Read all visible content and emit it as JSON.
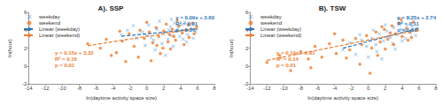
{
  "chart_data": [
    {
      "type": "scatter",
      "title": "A). SSP",
      "x_label": "ln(daytime activity space size)",
      "y_label": "ln(hour)",
      "xlim": [
        -14,
        8
      ],
      "xticks": [
        -14,
        -12,
        -10,
        -8,
        -6,
        -4,
        -2,
        0,
        2,
        4,
        6,
        8
      ],
      "ylim": [
        -2,
        6
      ],
      "yticks": [
        -2,
        0,
        2,
        4,
        6
      ],
      "grid": false,
      "legend": "top-left",
      "series": [
        {
          "name": "weekday",
          "type": "scatter",
          "marker": "x",
          "color": "#5b9bd5",
          "x": [
            0.5,
            1.2,
            2.0,
            2.8,
            3.5,
            4.1,
            4.8,
            5.2,
            5.8,
            1.8,
            2.5,
            3.1,
            3.9,
            4.5,
            0.2,
            -0.5,
            -1.2,
            -2.3,
            -3.0,
            1.0,
            2.2,
            3.3,
            4.7,
            5.5,
            0.8,
            -0.2,
            1.5,
            2.9,
            3.7,
            4.3,
            5.0,
            -1.6,
            0.0,
            2.6,
            3.0
          ],
          "values": [
            3.2,
            4.1,
            3.6,
            4.4,
            3.9,
            4.6,
            3.5,
            4.2,
            3.8,
            2.5,
            3.0,
            2.2,
            3.3,
            4.9,
            4.6,
            3.8,
            3.1,
            4.0,
            3.5,
            1.8,
            1.2,
            4.8,
            2.7,
            3.1,
            2.9,
            2.3,
            5.0,
            5.2,
            4.3,
            3.0,
            4.7,
            4.5,
            3.4,
            4.0,
            3.4
          ]
        },
        {
          "name": "weekend",
          "type": "scatter",
          "marker": "circle",
          "color": "#ed7d31",
          "x": [
            -7.0,
            -5.5,
            -4.8,
            -3.6,
            -2.9,
            -2.1,
            -1.5,
            -0.8,
            -0.3,
            0.3,
            0.7,
            1.1,
            1.4,
            1.9,
            2.3,
            2.7,
            3.0,
            3.4,
            3.8,
            4.2,
            4.6,
            5.0,
            5.4,
            5.9,
            -1.0,
            0.5,
            1.6,
            2.8,
            3.6,
            4.4,
            -3.2,
            -4.2,
            0.0,
            2.0,
            3.2,
            4.9,
            1.2,
            -2.5,
            5.6,
            2.5
          ],
          "values": [
            2.5,
            2.0,
            3.0,
            1.5,
            2.8,
            3.6,
            2.2,
            4.0,
            3.1,
            3.8,
            2.6,
            4.3,
            3.3,
            2.0,
            4.7,
            3.5,
            4.1,
            2.9,
            4.5,
            3.7,
            4.0,
            3.2,
            4.8,
            4.4,
            1.0,
            0.6,
            1.4,
            1.9,
            5.1,
            2.4,
            3.9,
            1.2,
            4.9,
            3.9,
            3.3,
            4.6,
            2.3,
            0.5,
            3.6,
            2.7
          ]
        },
        {
          "name": "Linear (weekday)",
          "type": "line",
          "line_style": "dashed",
          "color": "#2e75b6",
          "x": [
            -3,
            6
          ],
          "values": [
            3.33,
            4.14
          ]
        },
        {
          "name": "Linear (weekend)",
          "type": "line",
          "line_style": "dashed",
          "color": "#ed7d31",
          "x": [
            -7,
            6
          ],
          "values": [
            2.27,
            4.22
          ]
        }
      ],
      "annotations": [
        {
          "color": "#2e75b6",
          "lines": [
            "y = 0.09x + 3.60",
            "R² = 0.01",
            "p = 0.26"
          ]
        },
        {
          "color": "#ed7d31",
          "lines": [
            "y = 0.15x + 3.32",
            "R² = 0.16",
            "p = 0.01"
          ]
        }
      ]
    },
    {
      "type": "scatter",
      "title": "B). TSW",
      "x_label": "ln(daytime activity space size)",
      "y_label": "ln(hour)",
      "xlim": [
        -14,
        8
      ],
      "xticks": [
        -14,
        -12,
        -10,
        -8,
        -6,
        -4,
        -2,
        0,
        2,
        4,
        6,
        8
      ],
      "ylim": [
        -2,
        6
      ],
      "yticks": [
        -2,
        0,
        2,
        4,
        6
      ],
      "grid": false,
      "legend": "top-left",
      "series": [
        {
          "name": "weekday",
          "type": "scatter",
          "marker": "x",
          "color": "#5b9bd5",
          "x": [
            -3.0,
            -2.2,
            -1.5,
            -0.8,
            -0.2,
            0.4,
            0.9,
            1.3,
            1.8,
            2.2,
            2.6,
            3.0,
            3.4,
            3.8,
            4.2,
            4.6,
            5.0,
            5.4,
            5.8,
            0.0,
            1.0,
            2.0,
            2.9,
            3.6,
            4.4,
            5.2,
            -1.0,
            0.6,
            1.6,
            3.2,
            4.0,
            4.8,
            2.4,
            3.9,
            5.6
          ],
          "values": [
            1.8,
            2.6,
            1.3,
            2.9,
            2.2,
            3.1,
            2.4,
            3.6,
            2.8,
            3.9,
            3.2,
            4.3,
            3.5,
            4.8,
            3.9,
            4.5,
            3.7,
            5.0,
            4.2,
            1.0,
            1.6,
            4.6,
            2.5,
            5.3,
            3.1,
            4.4,
            3.5,
            4.0,
            0.8,
            1.9,
            2.8,
            5.4,
            3.3,
            4.1,
            3.4
          ]
        },
        {
          "name": "weekend",
          "type": "scatter",
          "marker": "circle",
          "color": "#ed7d31",
          "x": [
            -12.0,
            -10.5,
            -9.2,
            -8.0,
            -7.1,
            -6.3,
            -5.5,
            -4.6,
            -3.8,
            -3.0,
            -2.2,
            -1.5,
            -0.8,
            -0.2,
            0.4,
            0.9,
            1.4,
            1.9,
            2.3,
            2.8,
            3.2,
            3.6,
            4.0,
            4.5,
            4.9,
            5.3,
            5.8,
            -1.0,
            0.2,
            1.1,
            2.0,
            3.0,
            3.9,
            4.7,
            -4.0,
            -6.8,
            1.6,
            2.6,
            5.1,
            -2.6
          ],
          "values": [
            0.4,
            1.2,
            -0.5,
            1.6,
            0.8,
            2.2,
            1.0,
            2.5,
            1.4,
            2.9,
            1.8,
            3.1,
            2.4,
            3.4,
            2.0,
            3.8,
            2.7,
            4.1,
            3.0,
            4.5,
            3.6,
            4.8,
            3.3,
            4.2,
            3.8,
            4.9,
            4.0,
            0.2,
            -0.8,
            1.2,
            1.9,
            2.4,
            5.2,
            2.9,
            3.6,
            -0.2,
            4.4,
            3.7,
            3.2,
            0.9
          ]
        },
        {
          "name": "Linear (weekday)",
          "type": "line",
          "line_style": "dashed",
          "color": "#2e75b6",
          "x": [
            -3,
            6
          ],
          "values": [
            1.99,
            4.24
          ]
        },
        {
          "name": "Linear (weekend)",
          "type": "line",
          "line_style": "dashed",
          "color": "#ed7d31",
          "x": [
            -12,
            6
          ],
          "values": [
            0.63,
            4.05
          ]
        }
      ],
      "annotations": [
        {
          "color": "#2e75b6",
          "lines": [
            "y = 0.25x + 2.74",
            "R² = 0.11",
            "p = 0.01"
          ]
        },
        {
          "color": "#ed7d31",
          "lines": [
            "y = 0.19x + 2.91",
            "R² = 0.14",
            "p = 0.01"
          ]
        }
      ]
    }
  ]
}
